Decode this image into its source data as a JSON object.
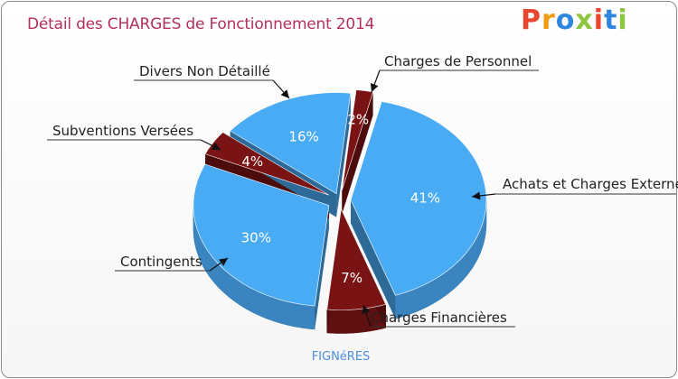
{
  "title": "Détail des CHARGES de Fonctionnement 2014",
  "logo": {
    "text": "Proxiti",
    "letters": [
      "P",
      "r",
      "o",
      "x",
      "i",
      "t",
      "i"
    ],
    "colors": [
      "#e8462e",
      "#f39c12",
      "#2e86de",
      "#8cc63f",
      "#e8462e",
      "#2e86de",
      "#8cc63f"
    ]
  },
  "footer": "FIGNéRES",
  "chart_data": {
    "type": "pie",
    "title": "Détail des CHARGES de Fonctionnement 2014",
    "subtitle": "FIGNéRES",
    "slices": [
      {
        "label": "Charges de Personnel",
        "value": 2,
        "value_label": "2%",
        "color": "#7a1414"
      },
      {
        "label": "Achats et Charges Externes",
        "value": 41,
        "value_label": "41%",
        "color": "#4aabf5"
      },
      {
        "label": "Charges Financières",
        "value": 7,
        "value_label": "7%",
        "color": "#7a1414"
      },
      {
        "label": "Contingents",
        "value": 30,
        "value_label": "30%",
        "color": "#4aabf5"
      },
      {
        "label": "Subventions Versées",
        "value": 4,
        "value_label": "4%",
        "color": "#7a1414"
      },
      {
        "label": "Divers Non Détaillé",
        "value": 16,
        "value_label": "16%",
        "color": "#4aabf5"
      }
    ]
  }
}
